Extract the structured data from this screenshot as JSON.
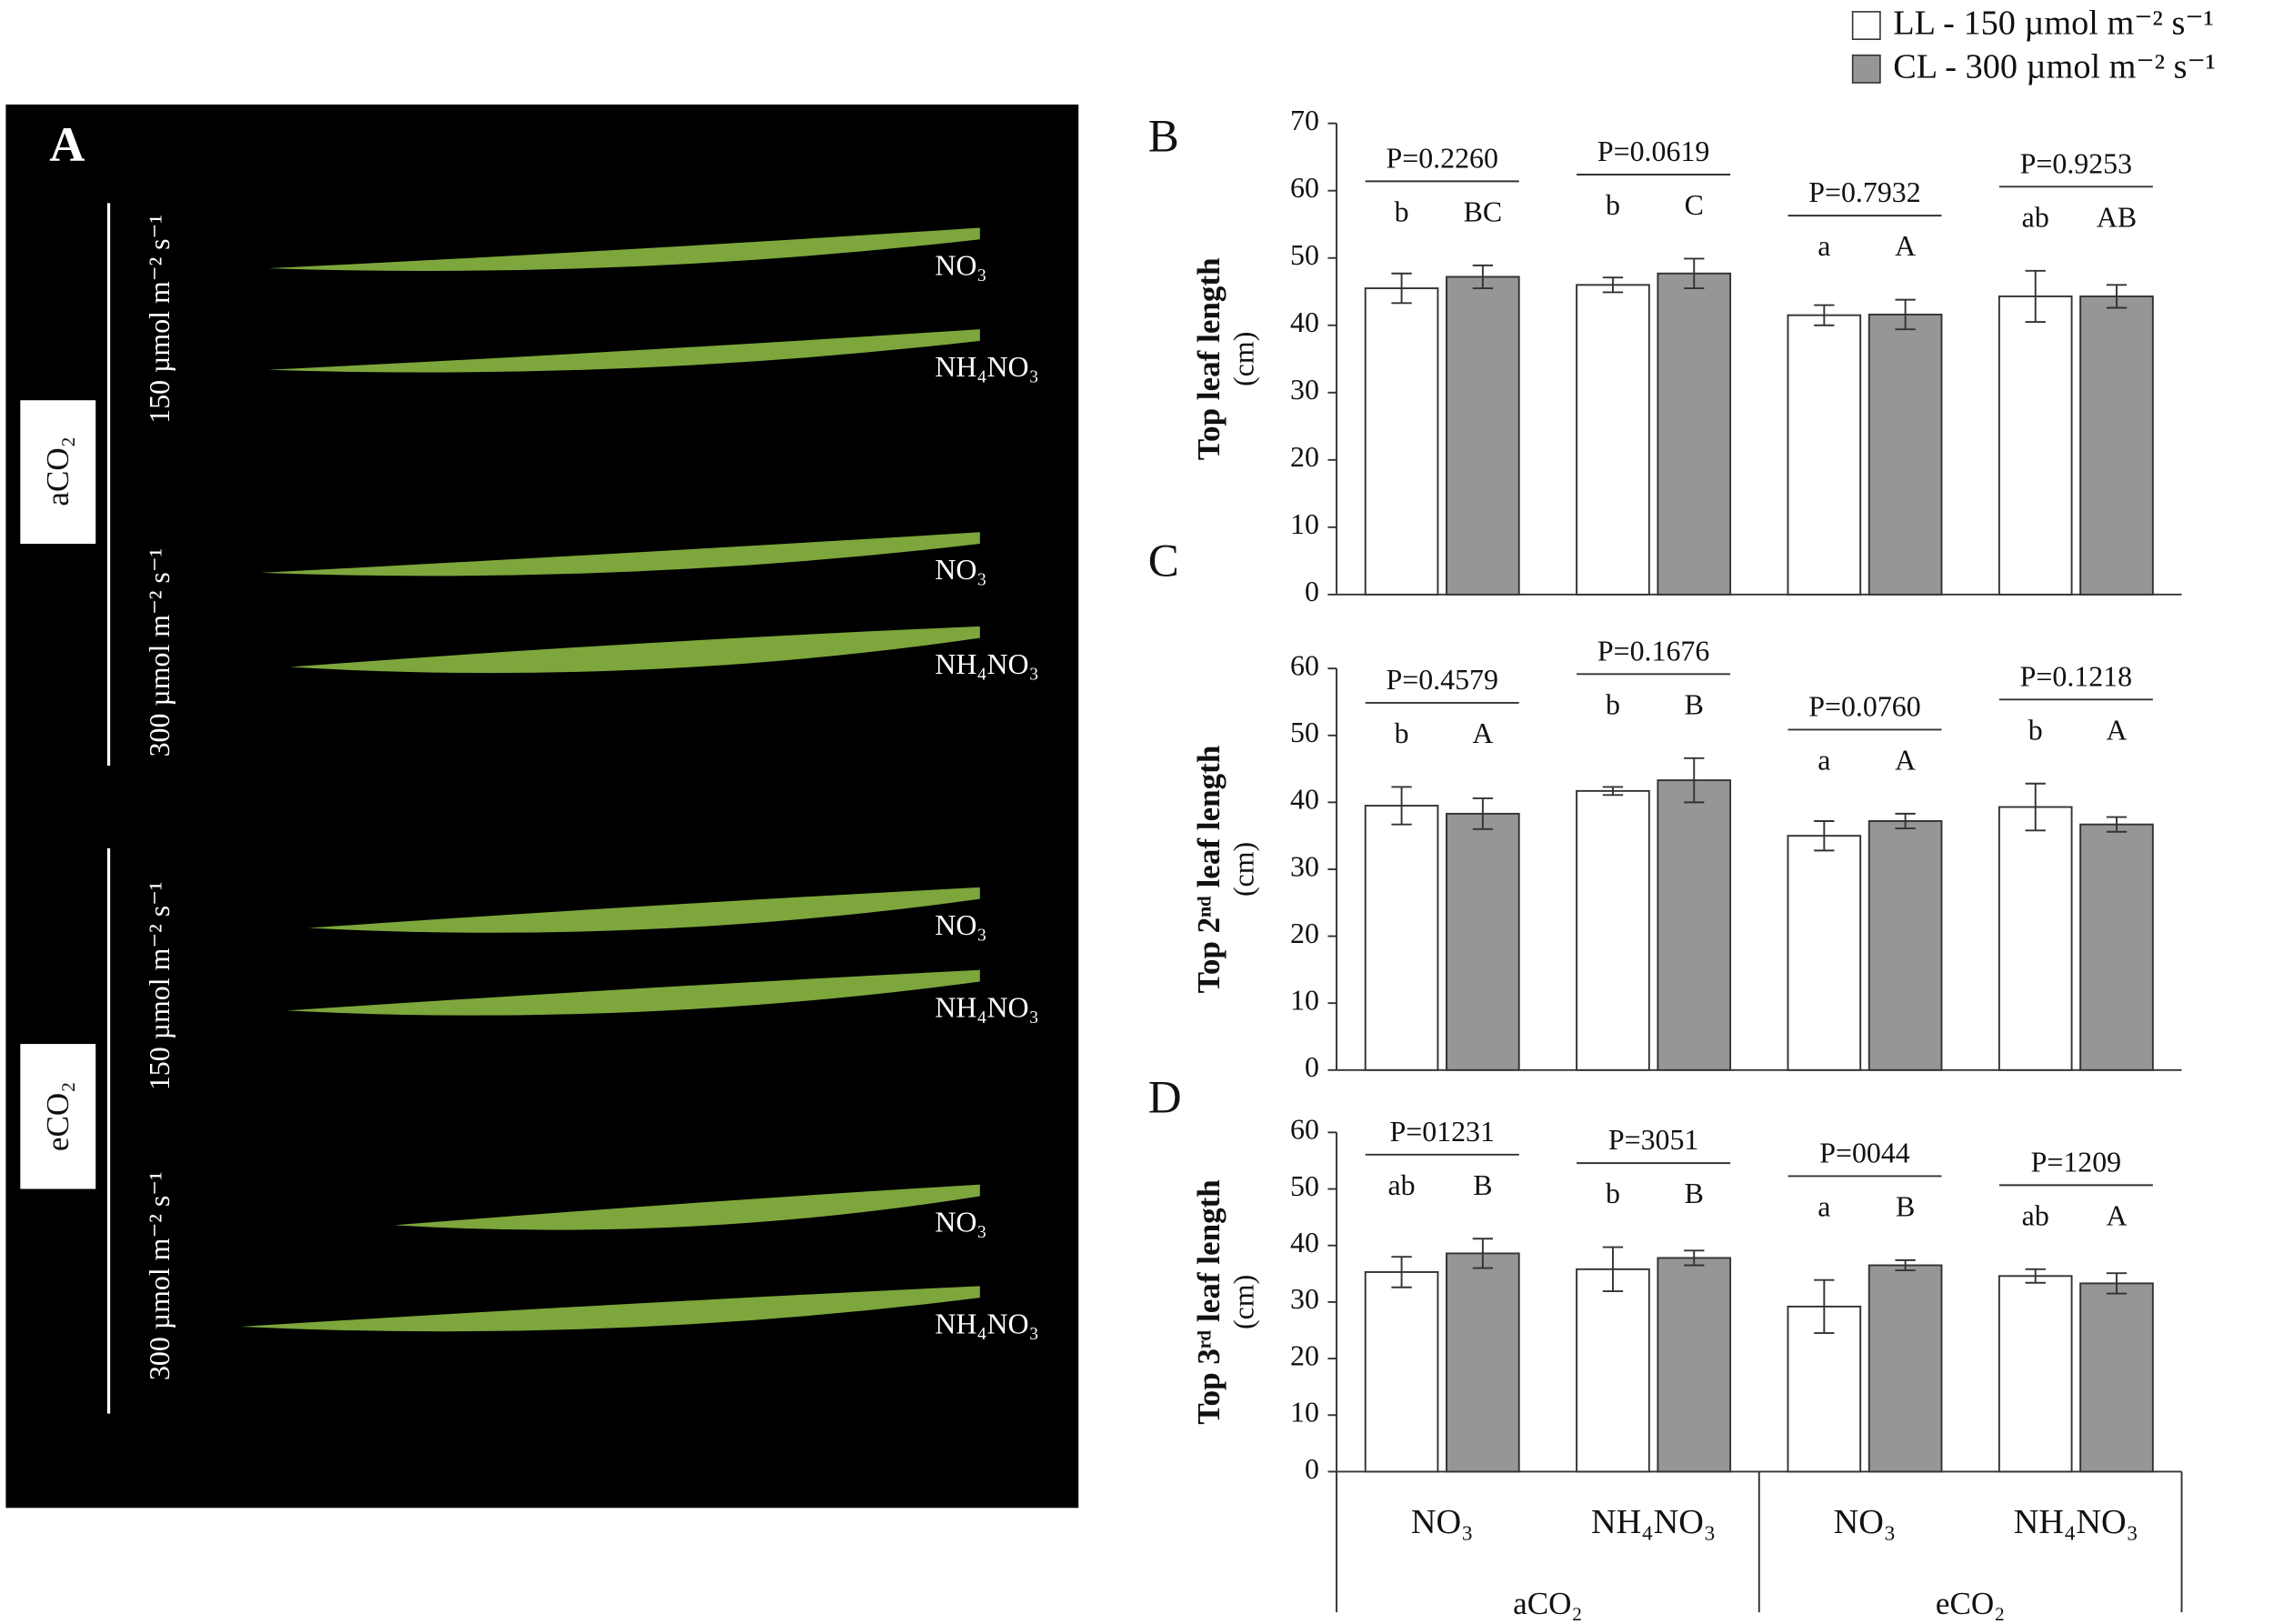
{
  "photo": {
    "label": "A",
    "groups": [
      {
        "name": "aCO₂",
        "light": [
          {
            "text": "150 µmol m⁻² s⁻¹",
            "leaves": [
              "NO₃",
              "NH₄NO₃"
            ]
          },
          {
            "text": "300 µmol m⁻² s⁻¹",
            "leaves": [
              "NO₃",
              "NH₄NO₃"
            ]
          }
        ]
      },
      {
        "name": "eCO₂",
        "light": [
          {
            "text": "150 µmol m⁻² s⁻¹",
            "leaves": [
              "NO₃",
              "NH₄NO₃"
            ]
          },
          {
            "text": "300 µmol m⁻² s⁻¹",
            "leaves": [
              "NO₃",
              "NH₄NO₃"
            ]
          }
        ]
      }
    ]
  },
  "chart_data": [
    {
      "type": "bar",
      "panel_label": "B",
      "ylabel": "Top leaf length",
      "yunit": "(cm)",
      "ylim": [
        0,
        70
      ],
      "yticks": [
        0,
        10,
        20,
        30,
        40,
        50,
        60,
        70
      ],
      "p_values": [
        "P=0.2260",
        "P=0.0619",
        "P=0.7932",
        "P=0.9253"
      ],
      "series": [
        {
          "name": "LL - 150 µmol m⁻² s⁻¹",
          "color": "#ffffff",
          "values": [
            45.5,
            46,
            41.5,
            44.3
          ],
          "errors": [
            2.2,
            1.1,
            1.5,
            3.8
          ],
          "letters": [
            "b",
            "b",
            "a",
            "ab"
          ]
        },
        {
          "name": "CL - 300 µmol m⁻² s⁻¹",
          "color": "#969696",
          "values": [
            47.2,
            47.7,
            41.6,
            44.3
          ],
          "errors": [
            1.7,
            2.2,
            2.2,
            1.7
          ],
          "letters": [
            "BC",
            "C",
            "A",
            "AB"
          ]
        }
      ]
    },
    {
      "type": "bar",
      "panel_label": "C",
      "ylabel": "Top 2ⁿᵈ leaf length",
      "yunit": "(cm)",
      "ylim": [
        0,
        60
      ],
      "yticks": [
        0,
        10,
        20,
        30,
        40,
        50,
        60
      ],
      "p_values": [
        "P=0.4579",
        "P=0.1676",
        "P=0.0760",
        "P=0.1218"
      ],
      "series": [
        {
          "color": "#ffffff",
          "values": [
            39.5,
            41.7,
            35,
            39.3
          ],
          "errors": [
            2.8,
            0.6,
            2.2,
            3.5
          ],
          "letters": [
            "b",
            "b",
            "a",
            "b"
          ]
        },
        {
          "color": "#969696",
          "values": [
            38.3,
            43.3,
            37.2,
            36.7
          ],
          "errors": [
            2.3,
            3.3,
            1.1,
            1.1
          ],
          "letters": [
            "A",
            "B",
            "A",
            "A"
          ]
        }
      ]
    },
    {
      "type": "bar",
      "panel_label": "D",
      "ylabel": "Top 3ʳᵈ leaf length",
      "yunit": "(cm)",
      "ylim": [
        0,
        60
      ],
      "yticks": [
        0,
        10,
        20,
        30,
        40,
        50,
        60
      ],
      "categories": [
        "NO₃",
        "NH₄NO₃",
        "NO₃",
        "NH₄NO₃"
      ],
      "groups": [
        "aCO₂",
        "eCO₂"
      ],
      "p_values": [
        "P=01231",
        "P=3051",
        "P=0044",
        "P=1209"
      ],
      "series": [
        {
          "color": "#ffffff",
          "values": [
            35.3,
            35.8,
            29.2,
            34.6
          ],
          "errors": [
            2.7,
            3.9,
            4.7,
            1.2
          ],
          "letters": [
            "ab",
            "b",
            "a",
            "ab"
          ]
        },
        {
          "color": "#969696",
          "values": [
            38.6,
            37.8,
            36.5,
            33.3
          ],
          "errors": [
            2.6,
            1.3,
            0.9,
            1.8
          ],
          "letters": [
            "B",
            "B",
            "B",
            "A"
          ]
        }
      ]
    }
  ]
}
